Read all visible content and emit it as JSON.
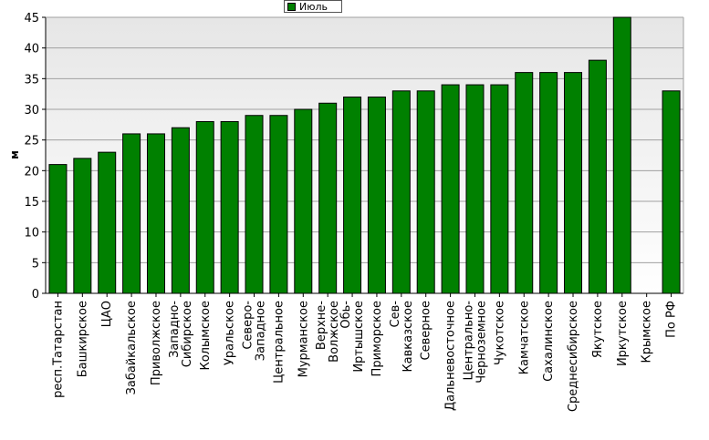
{
  "chart_data": {
    "type": "bar",
    "title": "",
    "xlabel": "",
    "ylabel": "м",
    "ylim": [
      0,
      45
    ],
    "yticks": [
      0,
      5,
      10,
      15,
      20,
      25,
      30,
      35,
      40,
      45
    ],
    "grid": true,
    "legend_position": "top-center",
    "categories": [
      "респ.Татарстан",
      "Башкирское",
      "ЦАО",
      "Забайкальское",
      "Приволжское",
      "Западно-\nСибирское",
      "Колымское",
      "Уральское",
      "Северо-\nЗападное",
      "Центральное",
      "Мурманское",
      "Верхне-\nВолжское",
      "Обь-\nИртышское",
      "Приморское",
      "Сев-\nКавказское",
      "Северное",
      "Дальневосточное",
      "Центрально-\nЧерноземное",
      "Чукотское",
      "Камчатское",
      "Сахалинское",
      "Среднесибирское",
      "Якутское",
      "Иркутское",
      "Крымское",
      "По РФ"
    ],
    "series": [
      {
        "name": "Июль",
        "color": "#008000",
        "values": [
          21,
          22,
          23,
          26,
          26,
          27,
          28,
          28,
          29,
          29,
          30,
          31,
          32,
          32,
          33,
          33,
          34,
          34,
          34,
          36,
          36,
          36,
          38,
          45,
          null,
          33
        ]
      }
    ]
  }
}
